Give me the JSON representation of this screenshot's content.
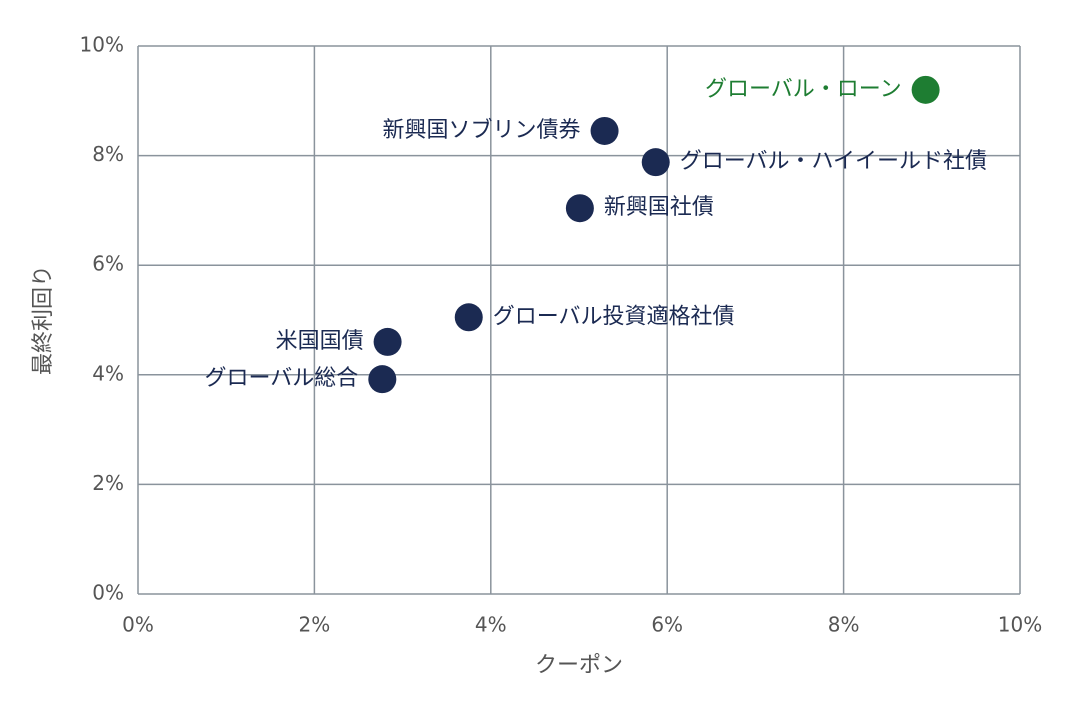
{
  "chart_data": {
    "type": "scatter",
    "x_label": "クーポン",
    "y_label": "最終利回り",
    "xlim": [
      0,
      10
    ],
    "ylim": [
      0,
      10
    ],
    "xticks": [
      {
        "value": 0,
        "label": "0%"
      },
      {
        "value": 2,
        "label": "2%"
      },
      {
        "value": 4,
        "label": "4%"
      },
      {
        "value": 6,
        "label": "6%"
      },
      {
        "value": 8,
        "label": "8%"
      },
      {
        "value": 10,
        "label": "10%"
      }
    ],
    "yticks": [
      {
        "value": 0,
        "label": "0%"
      },
      {
        "value": 2,
        "label": "2%"
      },
      {
        "value": 4,
        "label": "4%"
      },
      {
        "value": 6,
        "label": "6%"
      },
      {
        "value": 8,
        "label": "8%"
      },
      {
        "value": 10,
        "label": "10%"
      }
    ],
    "grid": true,
    "points": [
      {
        "name": "グローバル・ローン",
        "x": 8.93,
        "y": 9.2,
        "color": "#1e7d32"
      },
      {
        "name": "新興国ソブリン債券",
        "x": 5.29,
        "y": 8.45,
        "color": "#1b2a52"
      },
      {
        "name": "グローバル・ハイイールド社債",
        "x": 5.87,
        "y": 7.88,
        "color": "#1b2a52"
      },
      {
        "name": "新興国社債",
        "x": 5.01,
        "y": 7.04,
        "color": "#1b2a52"
      },
      {
        "name": "グローバル投資適格社債",
        "x": 3.75,
        "y": 5.05,
        "color": "#1b2a52"
      },
      {
        "name": "米国国債",
        "x": 2.83,
        "y": 4.6,
        "color": "#1b2a52"
      },
      {
        "name": "グローバル総合",
        "x": 2.77,
        "y": 3.92,
        "color": "#1b2a52"
      }
    ]
  }
}
